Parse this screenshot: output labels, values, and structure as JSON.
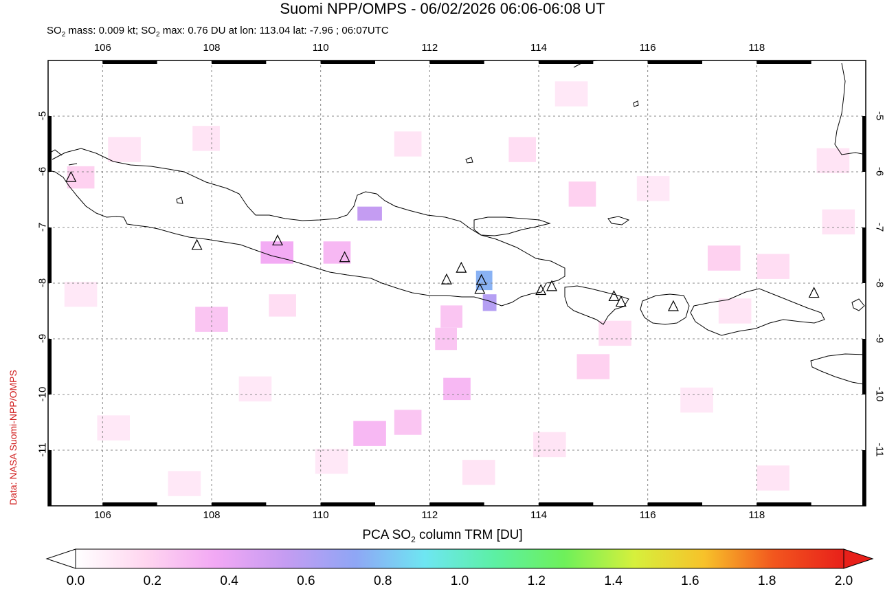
{
  "header": {
    "title": "Suomi NPP/OMPS - 06/02/2026 06:06-06:08 UT",
    "subtitle_prefix": "SO",
    "subtitle_sub": "2",
    "subtitle_mid": " mass: 0.009 kt; SO",
    "subtitle_rest": " max: 0.76 DU at lon: 113.04 lat: -7.96 ; 06:07UTC"
  },
  "credit": "Data: NASA Suomi-NPP/OMPS",
  "map": {
    "lon_range": [
      105.0,
      120.0
    ],
    "lat_range": [
      -12.0,
      -4.0
    ],
    "x_ticks": [
      "106",
      "108",
      "110",
      "112",
      "114",
      "116",
      "118"
    ],
    "x_tick_values": [
      106,
      108,
      110,
      112,
      114,
      116,
      118
    ],
    "y_ticks": [
      "-5",
      "-6",
      "-7",
      "-8",
      "-9",
      "-10",
      "-11"
    ],
    "y_tick_values": [
      -5,
      -6,
      -7,
      -8,
      -9,
      -10,
      -11
    ],
    "volcanoes": [
      {
        "lon": 105.42,
        "lat": -6.1
      },
      {
        "lon": 107.73,
        "lat": -7.32
      },
      {
        "lon": 109.21,
        "lat": -7.24
      },
      {
        "lon": 110.44,
        "lat": -7.54
      },
      {
        "lon": 112.31,
        "lat": -7.94
      },
      {
        "lon": 112.58,
        "lat": -7.73
      },
      {
        "lon": 112.92,
        "lat": -8.11
      },
      {
        "lon": 112.95,
        "lat": -7.95
      },
      {
        "lon": 114.04,
        "lat": -8.13
      },
      {
        "lon": 114.24,
        "lat": -8.06
      },
      {
        "lon": 115.38,
        "lat": -8.24
      },
      {
        "lon": 115.51,
        "lat": -8.34
      },
      {
        "lon": 116.47,
        "lat": -8.42
      },
      {
        "lon": 119.05,
        "lat": -8.18
      }
    ],
    "so2_pixels": [
      {
        "lon": 110.9,
        "lat": -6.75,
        "w": 0.45,
        "h": 0.25,
        "v": 0.55
      },
      {
        "lon": 113.0,
        "lat": -7.95,
        "w": 0.3,
        "h": 0.35,
        "v": 0.76
      },
      {
        "lon": 113.1,
        "lat": -8.35,
        "w": 0.25,
        "h": 0.3,
        "v": 0.6
      },
      {
        "lon": 109.2,
        "lat": -7.45,
        "w": 0.6,
        "h": 0.4,
        "v": 0.35
      },
      {
        "lon": 110.3,
        "lat": -7.45,
        "w": 0.5,
        "h": 0.4,
        "v": 0.3
      },
      {
        "lon": 105.6,
        "lat": -6.1,
        "w": 0.5,
        "h": 0.4,
        "v": 0.2
      },
      {
        "lon": 110.9,
        "lat": -10.7,
        "w": 0.6,
        "h": 0.45,
        "v": 0.3
      },
      {
        "lon": 111.6,
        "lat": -10.5,
        "w": 0.5,
        "h": 0.45,
        "v": 0.25
      },
      {
        "lon": 112.5,
        "lat": -9.9,
        "w": 0.5,
        "h": 0.4,
        "v": 0.3
      },
      {
        "lon": 112.3,
        "lat": -9.0,
        "w": 0.4,
        "h": 0.4,
        "v": 0.25
      },
      {
        "lon": 112.4,
        "lat": -8.6,
        "w": 0.4,
        "h": 0.4,
        "v": 0.25
      },
      {
        "lon": 115.0,
        "lat": -9.5,
        "w": 0.6,
        "h": 0.45,
        "v": 0.2
      },
      {
        "lon": 114.8,
        "lat": -6.4,
        "w": 0.5,
        "h": 0.45,
        "v": 0.2
      },
      {
        "lon": 117.4,
        "lat": -7.55,
        "w": 0.6,
        "h": 0.45,
        "v": 0.2
      },
      {
        "lon": 108.0,
        "lat": -8.65,
        "w": 0.6,
        "h": 0.45,
        "v": 0.25
      },
      {
        "lon": 109.3,
        "lat": -8.4,
        "w": 0.5,
        "h": 0.4,
        "v": 0.15
      },
      {
        "lon": 106.4,
        "lat": -5.6,
        "w": 0.6,
        "h": 0.45,
        "v": 0.12
      },
      {
        "lon": 107.9,
        "lat": -5.4,
        "w": 0.5,
        "h": 0.45,
        "v": 0.12
      },
      {
        "lon": 111.6,
        "lat": -5.5,
        "w": 0.5,
        "h": 0.45,
        "v": 0.12
      },
      {
        "lon": 113.7,
        "lat": -5.6,
        "w": 0.5,
        "h": 0.45,
        "v": 0.15
      },
      {
        "lon": 114.6,
        "lat": -4.6,
        "w": 0.6,
        "h": 0.45,
        "v": 0.1
      },
      {
        "lon": 116.1,
        "lat": -6.3,
        "w": 0.6,
        "h": 0.45,
        "v": 0.1
      },
      {
        "lon": 118.3,
        "lat": -7.7,
        "w": 0.6,
        "h": 0.45,
        "v": 0.15
      },
      {
        "lon": 119.4,
        "lat": -5.8,
        "w": 0.6,
        "h": 0.45,
        "v": 0.12
      },
      {
        "lon": 119.5,
        "lat": -6.9,
        "w": 0.6,
        "h": 0.45,
        "v": 0.12
      },
      {
        "lon": 106.2,
        "lat": -10.6,
        "w": 0.6,
        "h": 0.45,
        "v": 0.1
      },
      {
        "lon": 107.5,
        "lat": -11.6,
        "w": 0.6,
        "h": 0.45,
        "v": 0.1
      },
      {
        "lon": 112.9,
        "lat": -11.4,
        "w": 0.6,
        "h": 0.45,
        "v": 0.12
      },
      {
        "lon": 116.9,
        "lat": -10.1,
        "w": 0.6,
        "h": 0.45,
        "v": 0.1
      },
      {
        "lon": 118.3,
        "lat": -11.5,
        "w": 0.6,
        "h": 0.45,
        "v": 0.12
      },
      {
        "lon": 114.2,
        "lat": -10.9,
        "w": 0.6,
        "h": 0.45,
        "v": 0.12
      },
      {
        "lon": 115.4,
        "lat": -8.9,
        "w": 0.6,
        "h": 0.45,
        "v": 0.15
      },
      {
        "lon": 117.6,
        "lat": -8.5,
        "w": 0.6,
        "h": 0.45,
        "v": 0.12
      },
      {
        "lon": 108.8,
        "lat": -9.9,
        "w": 0.6,
        "h": 0.45,
        "v": 0.1
      },
      {
        "lon": 110.2,
        "lat": -11.2,
        "w": 0.6,
        "h": 0.45,
        "v": 0.1
      },
      {
        "lon": 105.6,
        "lat": -8.2,
        "w": 0.6,
        "h": 0.45,
        "v": 0.1
      }
    ]
  },
  "colorbar": {
    "label_prefix": "PCA SO",
    "label_sub": "2",
    "label_rest": " column TRM [DU]",
    "ticks": [
      "0.0",
      "0.2",
      "0.4",
      "0.6",
      "0.8",
      "1.0",
      "1.2",
      "1.4",
      "1.6",
      "1.8",
      "2.0"
    ],
    "range": [
      0.0,
      2.0
    ],
    "colors": [
      "#ffffff",
      "#ffd6f0",
      "#f2a8f4",
      "#c59cf2",
      "#8fa6f5",
      "#6ee6f2",
      "#5cf0a4",
      "#6ef05a",
      "#d6f03c",
      "#f7c22a",
      "#f2561e",
      "#e8201a"
    ]
  }
}
